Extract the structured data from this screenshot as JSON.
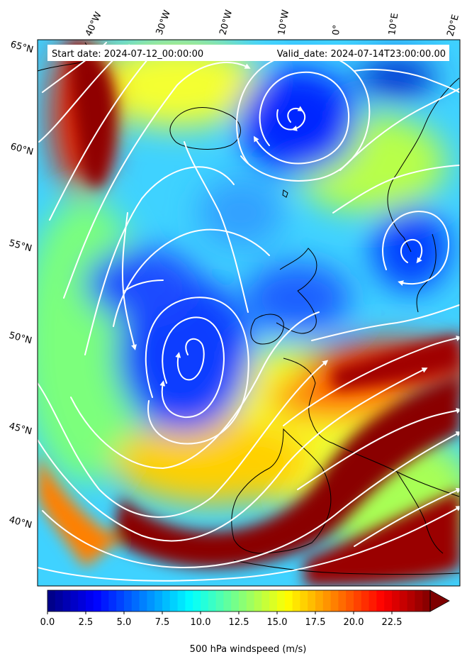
{
  "header": {
    "start_date": "Start date: 2024-07-12_00:00:00",
    "valid_date": "Valid_date: 2024-07-14T23:00:00.00"
  },
  "axes": {
    "lon_labels": [
      "40°W",
      "30°W",
      "20°W",
      "10°W",
      "0°",
      "10°E",
      "20°E"
    ],
    "lat_labels": [
      "65°N",
      "60°N",
      "55°N",
      "50°N",
      "45°N",
      "40°N"
    ]
  },
  "colorbar": {
    "title": "500 hPa windspeed (m/s)",
    "ticks": [
      "0.0",
      "2.5",
      "5.0",
      "7.5",
      "10.0",
      "12.5",
      "15.0",
      "17.5",
      "20.0",
      "22.5"
    ],
    "min": 0,
    "max": 25,
    "extend": "max",
    "colormap": "jet"
  },
  "colors": {
    "streamline": "#ffffff",
    "coastline": "#000000",
    "frame": "#000000"
  }
}
